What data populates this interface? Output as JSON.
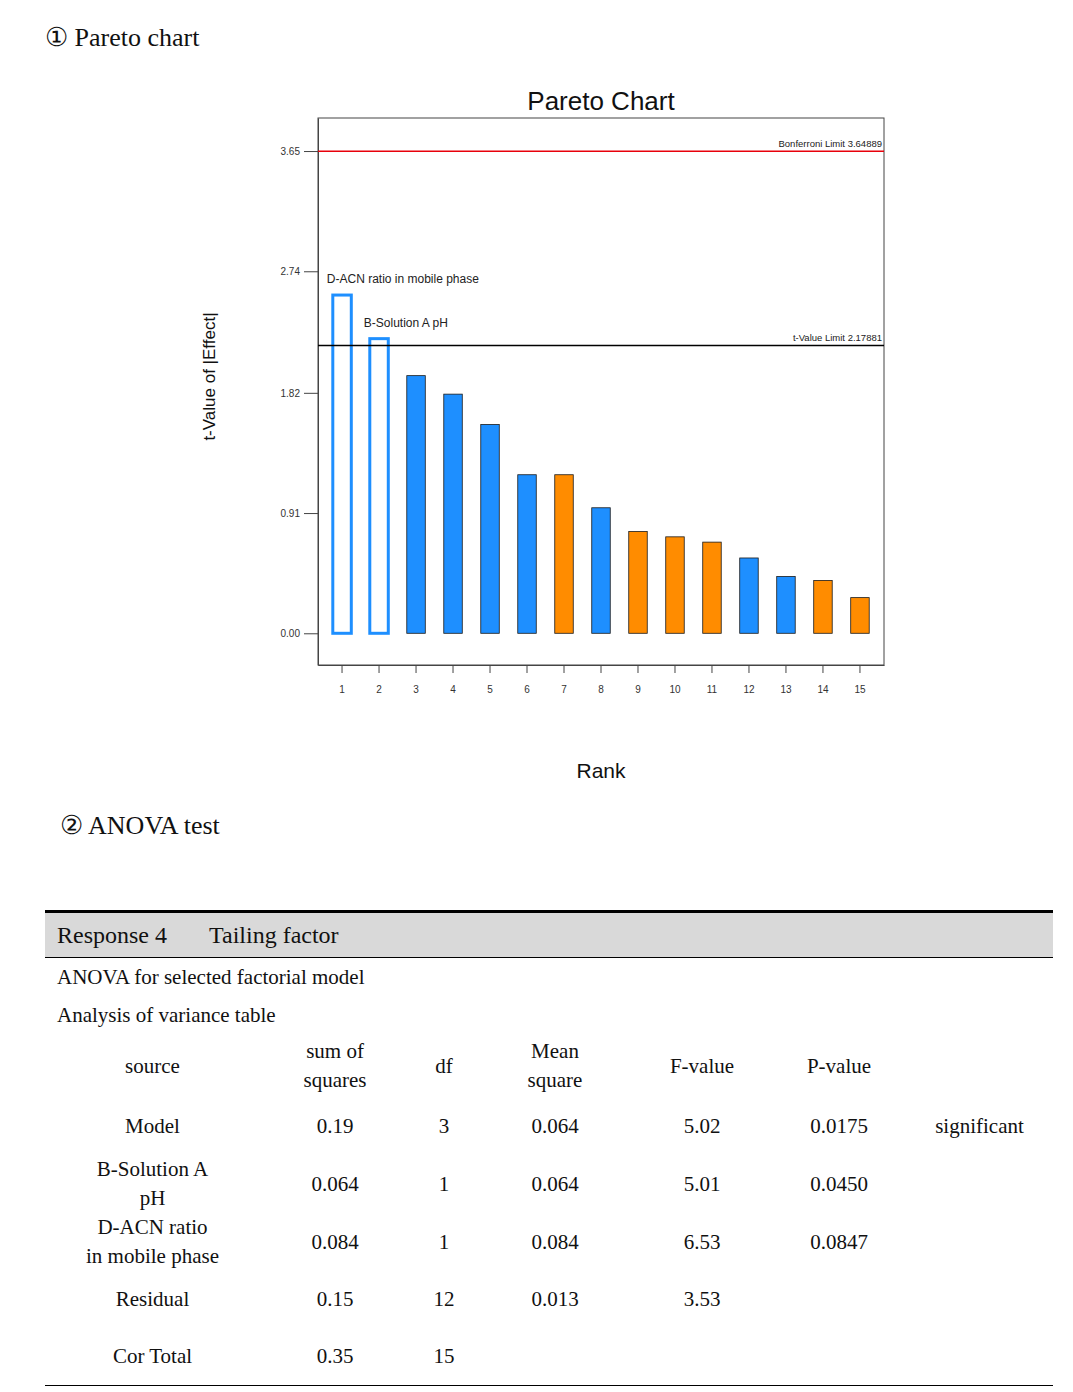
{
  "headings": [
    "① Pareto chart",
    "② ANOVA test"
  ],
  "chart_data": {
    "type": "bar",
    "title": "Pareto Chart",
    "xlabel": "Rank",
    "ylabel": "t-Value of |Effect|",
    "categories": [
      "1",
      "2",
      "3",
      "4",
      "5",
      "6",
      "7",
      "8",
      "9",
      "10",
      "11",
      "12",
      "13",
      "14",
      "15"
    ],
    "values": [
      2.56,
      2.23,
      1.95,
      1.81,
      1.58,
      1.2,
      1.2,
      0.95,
      0.77,
      0.73,
      0.69,
      0.57,
      0.43,
      0.4,
      0.27
    ],
    "colors": [
      "#1e8fff",
      "#1e8fff",
      "#1e8fff",
      "#1e8fff",
      "#1e8fff",
      "#1e8fff",
      "#ff8c00",
      "#1e8fff",
      "#ff8c00",
      "#ff8c00",
      "#ff8c00",
      "#1e8fff",
      "#1e8fff",
      "#ff8c00",
      "#ff8c00"
    ],
    "ylim": [
      -0.24,
      3.9
    ],
    "yticks": [
      {
        "value": 0,
        "label": "0.00"
      },
      0.91,
      1.82,
      2.74,
      3.65
    ],
    "reference_lines": [
      {
        "label": "Bonferroni Limit 3.64889",
        "value": 3.64889,
        "color": "#e8000b"
      },
      {
        "label": "t-Value Limit 2.17881",
        "value": 2.17881,
        "color": "#000000"
      }
    ],
    "annotations": [
      {
        "text": "D-ACN ratio in mobile phase",
        "category": "1"
      },
      {
        "text": "B-Solution A pH",
        "category": "2"
      }
    ]
  },
  "table": {
    "title": "Response 4",
    "subtitle": "Tailing factor",
    "captions": [
      "ANOVA for selected factorial model",
      "Analysis of variance table"
    ],
    "columns": [
      [
        "source"
      ],
      [
        "sum of",
        "squares"
      ],
      [
        "df"
      ],
      [
        "Mean",
        "square"
      ],
      [
        "F-value"
      ],
      [
        "P-value"
      ],
      null
    ],
    "rows": [
      [
        [
          "Model"
        ],
        [
          "0.19"
        ],
        [
          "3"
        ],
        [
          "0.064"
        ],
        [
          "5.02"
        ],
        [
          "0.0175"
        ],
        [
          "significant"
        ]
      ],
      [
        [
          "B-Solution A",
          "pH"
        ],
        [
          "0.064"
        ],
        [
          "1"
        ],
        [
          "0.064"
        ],
        [
          "5.01"
        ],
        [
          "0.0450"
        ],
        null
      ],
      [
        [
          "D-ACN ratio",
          "in mobile phase"
        ],
        [
          "0.084"
        ],
        [
          "1"
        ],
        [
          "0.084"
        ],
        [
          "6.53"
        ],
        [
          "0.0847"
        ],
        null
      ],
      [
        [
          "Residual"
        ],
        [
          "0.15"
        ],
        [
          "12"
        ],
        [
          "0.013"
        ],
        [
          "3.53"
        ],
        null,
        null
      ],
      [
        [
          "Cor Total"
        ],
        [
          "0.35"
        ],
        [
          "15"
        ],
        null,
        null,
        null,
        null
      ]
    ]
  }
}
